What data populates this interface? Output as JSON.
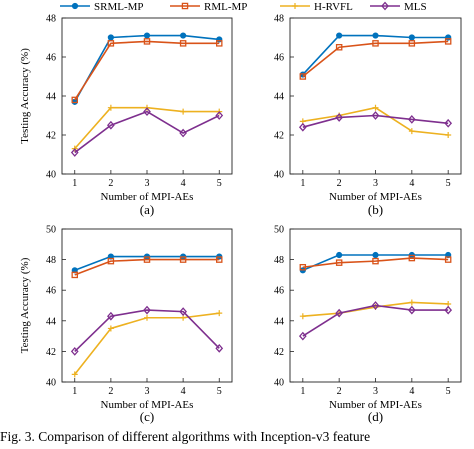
{
  "legend": [
    "SRML-MP",
    "RML-MP",
    "H-RVFL",
    "MLS"
  ],
  "colors": {
    "SRML-MP": "#0072BD",
    "RML-MP": "#D95319",
    "H-RVFL": "#EDB120",
    "MLS": "#7E2F8E"
  },
  "markers": {
    "SRML-MP": "dot",
    "RML-MP": "square",
    "H-RVFL": "plus",
    "MLS": "diamond"
  },
  "caption": "Fig. 3.   Comparison of different algorithms with Inception-v3 feature",
  "chart_data": [
    {
      "panel": "(a)",
      "type": "line",
      "xlabel": "Number of MPI-AEs",
      "ylabel": "Testing Accuracy (%)",
      "x": [
        1,
        2,
        3,
        4,
        5
      ],
      "xlim": [
        1,
        5
      ],
      "ylim": [
        40,
        48
      ],
      "yticks": [
        40,
        42,
        44,
        46,
        48
      ],
      "series": [
        {
          "name": "SRML-MP",
          "values": [
            43.7,
            47.0,
            47.1,
            47.1,
            46.9
          ]
        },
        {
          "name": "RML-MP",
          "values": [
            43.8,
            46.7,
            46.8,
            46.7,
            46.7
          ]
        },
        {
          "name": "H-RVFL",
          "values": [
            41.3,
            43.4,
            43.4,
            43.2,
            43.2
          ]
        },
        {
          "name": "MLS",
          "values": [
            41.1,
            42.5,
            43.2,
            42.1,
            43.0
          ]
        }
      ]
    },
    {
      "panel": "(b)",
      "type": "line",
      "xlabel": "Number of MPI-AEs",
      "ylabel": "",
      "x": [
        1,
        2,
        3,
        4,
        5
      ],
      "xlim": [
        1,
        5
      ],
      "ylim": [
        40,
        48
      ],
      "yticks": [
        40,
        42,
        44,
        46,
        48
      ],
      "series": [
        {
          "name": "SRML-MP",
          "values": [
            45.1,
            47.1,
            47.1,
            47.0,
            47.0
          ]
        },
        {
          "name": "RML-MP",
          "values": [
            45.0,
            46.5,
            46.7,
            46.7,
            46.8
          ]
        },
        {
          "name": "H-RVFL",
          "values": [
            42.7,
            43.0,
            43.4,
            42.2,
            42.0
          ]
        },
        {
          "name": "MLS",
          "values": [
            42.4,
            42.9,
            43.0,
            42.8,
            42.6
          ]
        }
      ]
    },
    {
      "panel": "(c)",
      "type": "line",
      "xlabel": "Number of MPI-AEs",
      "ylabel": "Testing Accuracy (%)",
      "x": [
        1,
        2,
        3,
        4,
        5
      ],
      "xlim": [
        1,
        5
      ],
      "ylim": [
        40,
        50
      ],
      "yticks": [
        40,
        42,
        44,
        46,
        48,
        50
      ],
      "series": [
        {
          "name": "SRML-MP",
          "values": [
            47.3,
            48.2,
            48.2,
            48.2,
            48.2
          ]
        },
        {
          "name": "RML-MP",
          "values": [
            47.0,
            47.9,
            48.0,
            48.0,
            48.0
          ]
        },
        {
          "name": "H-RVFL",
          "values": [
            40.5,
            43.5,
            44.2,
            44.2,
            44.5
          ]
        },
        {
          "name": "MLS",
          "values": [
            42.0,
            44.3,
            44.7,
            44.6,
            42.2
          ]
        }
      ]
    },
    {
      "panel": "(d)",
      "type": "line",
      "xlabel": "Number of MPI-AEs",
      "ylabel": "",
      "x": [
        1,
        2,
        3,
        4,
        5
      ],
      "xlim": [
        1,
        5
      ],
      "ylim": [
        40,
        50
      ],
      "yticks": [
        40,
        42,
        44,
        46,
        48,
        50
      ],
      "series": [
        {
          "name": "SRML-MP",
          "values": [
            47.3,
            48.3,
            48.3,
            48.3,
            48.3
          ]
        },
        {
          "name": "RML-MP",
          "values": [
            47.5,
            47.8,
            47.9,
            48.1,
            48.0
          ]
        },
        {
          "name": "H-RVFL",
          "values": [
            44.3,
            44.5,
            44.9,
            45.2,
            45.1
          ]
        },
        {
          "name": "MLS",
          "values": [
            43.0,
            44.5,
            45.0,
            44.7,
            44.7
          ]
        }
      ]
    }
  ]
}
